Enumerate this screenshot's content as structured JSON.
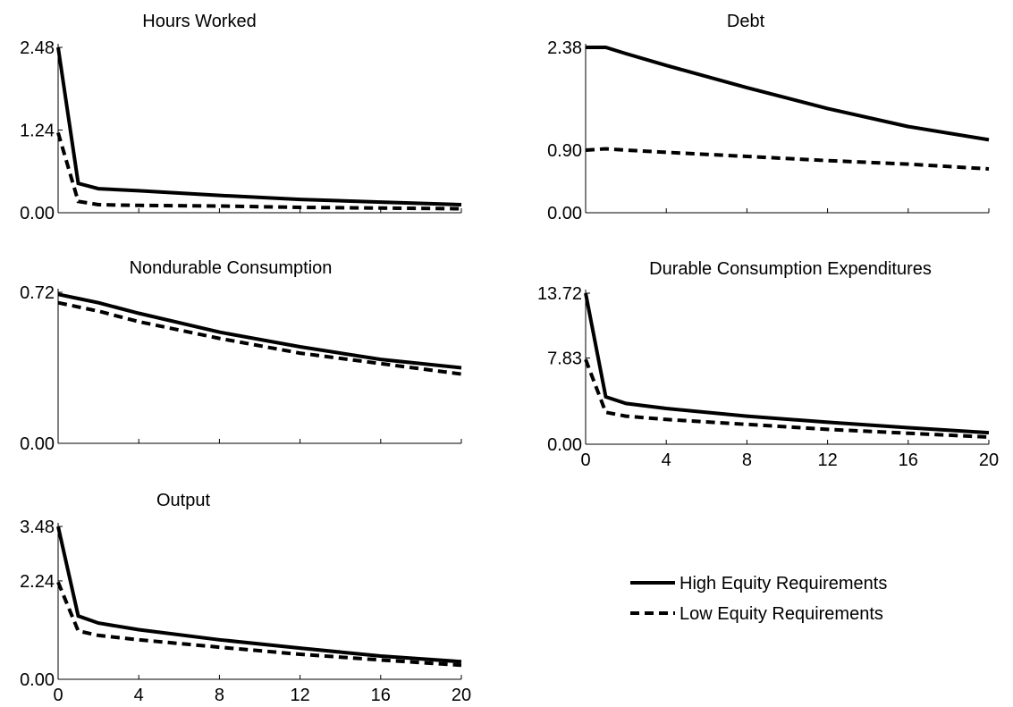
{
  "chart_data": [
    {
      "type": "line",
      "title": "Hours Worked",
      "xlim": [
        0,
        20
      ],
      "ylim": [
        0,
        2.48
      ],
      "y_ticks": [
        "2.48",
        "1.24",
        "0.00"
      ],
      "y_tick_values": [
        2.48,
        1.24,
        0.0
      ],
      "x_ticks": [],
      "series": [
        {
          "x": [
            0,
            1,
            2,
            4,
            8,
            12,
            16,
            20
          ],
          "values": [
            2.48,
            0.44,
            0.36,
            0.33,
            0.26,
            0.2,
            0.16,
            0.12
          ]
        },
        {
          "x": [
            0,
            1,
            2,
            4,
            8,
            12,
            16,
            20
          ],
          "values": [
            1.2,
            0.17,
            0.12,
            0.11,
            0.1,
            0.08,
            0.07,
            0.06
          ]
        }
      ]
    },
    {
      "type": "line",
      "title": "Debt",
      "xlim": [
        0,
        20
      ],
      "ylim": [
        0,
        2.38
      ],
      "y_ticks": [
        "2.38",
        "0.90",
        "0.00"
      ],
      "y_tick_values": [
        2.38,
        0.9,
        0.0
      ],
      "x_ticks": [],
      "series": [
        {
          "x": [
            0,
            1,
            2,
            4,
            8,
            12,
            16,
            20
          ],
          "values": [
            2.38,
            2.38,
            2.29,
            2.12,
            1.8,
            1.5,
            1.24,
            1.05
          ]
        },
        {
          "x": [
            0,
            1,
            2,
            4,
            8,
            12,
            16,
            20
          ],
          "values": [
            0.9,
            0.92,
            0.9,
            0.87,
            0.81,
            0.75,
            0.7,
            0.63
          ]
        }
      ]
    },
    {
      "type": "line",
      "title": "Nondurable Consumption",
      "xlim": [
        0,
        20
      ],
      "ylim": [
        0,
        0.72
      ],
      "y_ticks": [
        "0.72",
        "0.00"
      ],
      "y_tick_values": [
        0.72,
        0.0
      ],
      "x_ticks": [],
      "series": [
        {
          "x": [
            0,
            1,
            2,
            4,
            8,
            12,
            16,
            20
          ],
          "values": [
            0.71,
            0.69,
            0.67,
            0.62,
            0.53,
            0.46,
            0.4,
            0.36
          ]
        },
        {
          "x": [
            0,
            1,
            2,
            4,
            8,
            12,
            16,
            20
          ],
          "values": [
            0.67,
            0.65,
            0.63,
            0.58,
            0.5,
            0.43,
            0.38,
            0.33
          ]
        }
      ]
    },
    {
      "type": "line",
      "title": "Durable Consumption Expenditures",
      "xlim": [
        0,
        20
      ],
      "ylim": [
        0,
        13.72
      ],
      "y_ticks": [
        "13.72",
        "7.83",
        "0.00"
      ],
      "y_tick_values": [
        13.72,
        7.83,
        0.0
      ],
      "x_ticks": [
        "0",
        "4",
        "8",
        "12",
        "16",
        "20"
      ],
      "series": [
        {
          "x": [
            0,
            1,
            2,
            4,
            8,
            12,
            16,
            20
          ],
          "values": [
            13.72,
            4.3,
            3.7,
            3.25,
            2.55,
            2.0,
            1.5,
            1.05
          ]
        },
        {
          "x": [
            0,
            1,
            2,
            4,
            8,
            12,
            16,
            20
          ],
          "values": [
            7.7,
            2.9,
            2.55,
            2.25,
            1.8,
            1.35,
            1.0,
            0.65
          ]
        }
      ]
    },
    {
      "type": "line",
      "title": "Output",
      "xlim": [
        0,
        20
      ],
      "ylim": [
        0,
        3.48
      ],
      "y_ticks": [
        "3.48",
        "2.24",
        "0.00"
      ],
      "y_tick_values": [
        3.48,
        2.24,
        0.0
      ],
      "x_ticks": [
        "0",
        "4",
        "8",
        "12",
        "16",
        "20"
      ],
      "series": [
        {
          "x": [
            0,
            1,
            2,
            4,
            8,
            12,
            16,
            20
          ],
          "values": [
            3.48,
            1.44,
            1.28,
            1.13,
            0.9,
            0.71,
            0.53,
            0.4
          ]
        },
        {
          "x": [
            0,
            1,
            2,
            4,
            8,
            12,
            16,
            20
          ],
          "values": [
            2.21,
            1.1,
            1.0,
            0.9,
            0.73,
            0.57,
            0.44,
            0.32
          ]
        }
      ]
    }
  ],
  "legend": {
    "solid_label": "High Equity Requirements",
    "dashed_label": "Low Equity Requirements"
  }
}
